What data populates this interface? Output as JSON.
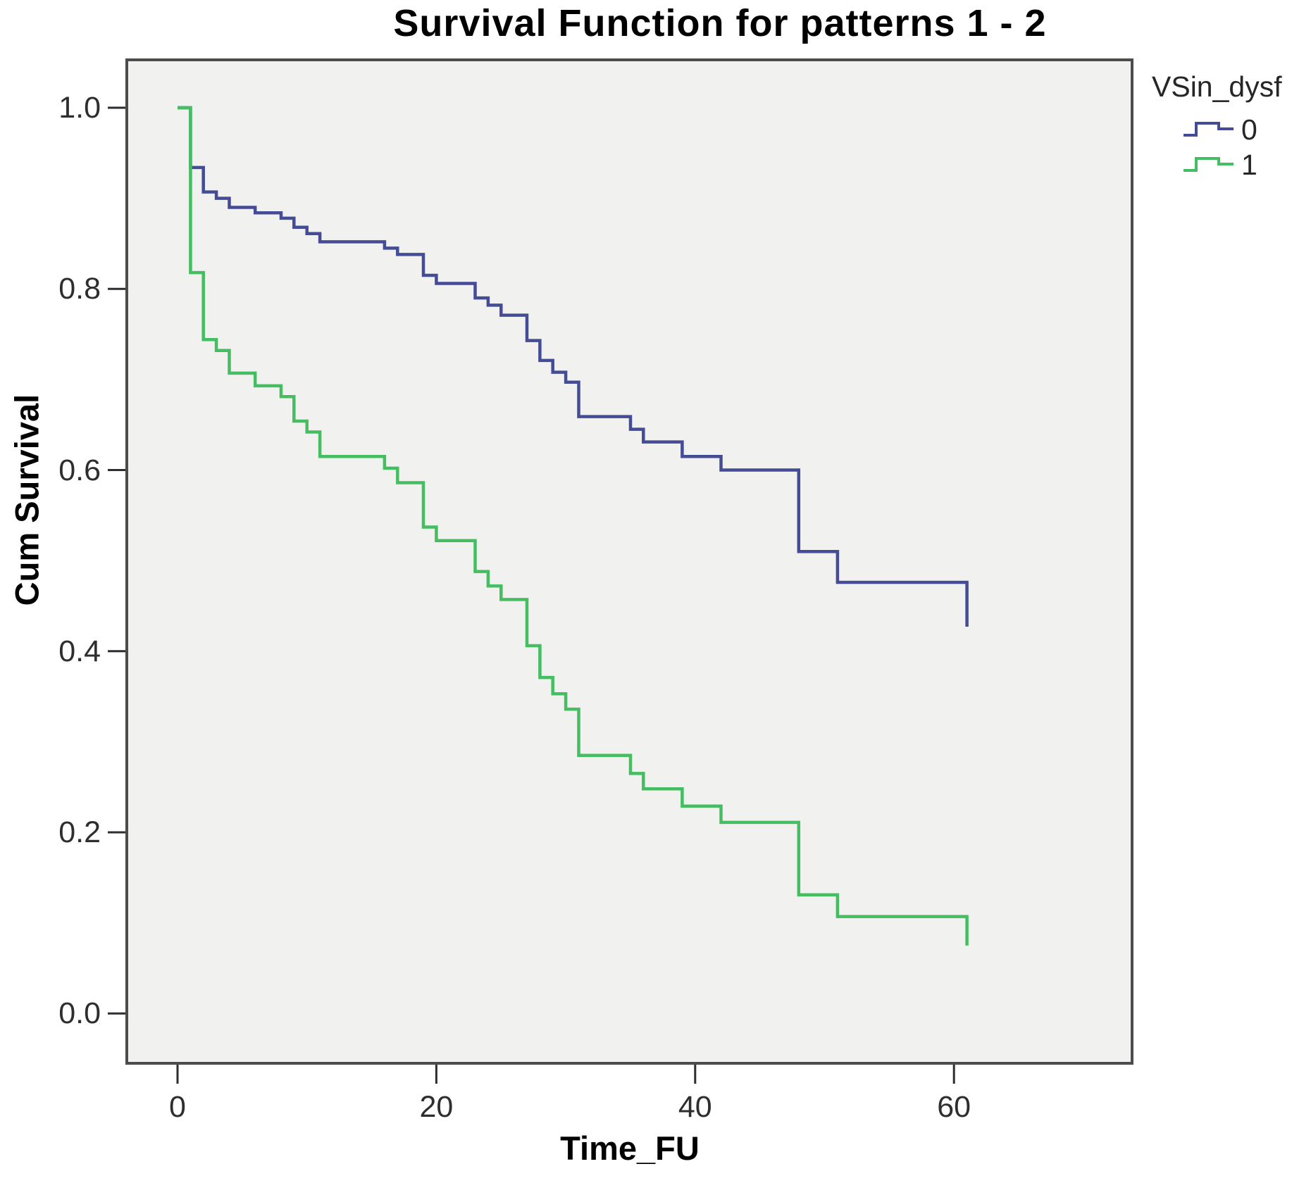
{
  "chart_data": {
    "type": "line",
    "subtype": "step-survival",
    "title": "Survival Function for patterns 1 - 2",
    "xlabel": "Time_FU",
    "ylabel": "Cum Survival",
    "legend_title": "VSin_dysf",
    "legend_position": "top-right-outside",
    "grid": false,
    "plot_background": "#f1f1ef",
    "plot_border_color": "#4c4c4c",
    "tick_color": "#2e2e2e",
    "xlim": [
      -3.9,
      73.8
    ],
    "ylim": [
      -0.055,
      1.055
    ],
    "x_ticks": {
      "values": [
        0,
        20,
        40,
        60
      ],
      "labels": [
        "0",
        "20",
        "40",
        "60"
      ]
    },
    "y_ticks": {
      "values": [
        0.0,
        0.2,
        0.4,
        0.6,
        0.8,
        1.0
      ],
      "labels": [
        "0.0",
        "0.2",
        "0.4",
        "0.6",
        "0.8",
        "1.0"
      ]
    },
    "series": [
      {
        "name": "0",
        "color": "#444c95",
        "points": [
          [
            0,
            1.0
          ],
          [
            1,
            0.934
          ],
          [
            2,
            0.907
          ],
          [
            3,
            0.9
          ],
          [
            4,
            0.89
          ],
          [
            6,
            0.884
          ],
          [
            8,
            0.878
          ],
          [
            9,
            0.868
          ],
          [
            10,
            0.861
          ],
          [
            11,
            0.852
          ],
          [
            16,
            0.845
          ],
          [
            17,
            0.838
          ],
          [
            19,
            0.815
          ],
          [
            20,
            0.806
          ],
          [
            23,
            0.79
          ],
          [
            24,
            0.782
          ],
          [
            25,
            0.771
          ],
          [
            27,
            0.743
          ],
          [
            28,
            0.721
          ],
          [
            29,
            0.708
          ],
          [
            30,
            0.697
          ],
          [
            31,
            0.659
          ],
          [
            35,
            0.645
          ],
          [
            36,
            0.631
          ],
          [
            39,
            0.615
          ],
          [
            42,
            0.6
          ],
          [
            48,
            0.51
          ],
          [
            51,
            0.476
          ],
          [
            61,
            0.427
          ]
        ]
      },
      {
        "name": "1",
        "color": "#45be61",
        "points": [
          [
            0,
            1.0
          ],
          [
            1,
            0.818
          ],
          [
            2,
            0.744
          ],
          [
            3,
            0.732
          ],
          [
            4,
            0.707
          ],
          [
            6,
            0.693
          ],
          [
            8,
            0.681
          ],
          [
            9,
            0.654
          ],
          [
            10,
            0.642
          ],
          [
            11,
            0.615
          ],
          [
            16,
            0.602
          ],
          [
            17,
            0.586
          ],
          [
            19,
            0.537
          ],
          [
            20,
            0.522
          ],
          [
            23,
            0.488
          ],
          [
            24,
            0.472
          ],
          [
            25,
            0.457
          ],
          [
            27,
            0.406
          ],
          [
            28,
            0.371
          ],
          [
            29,
            0.353
          ],
          [
            30,
            0.336
          ],
          [
            31,
            0.285
          ],
          [
            35,
            0.265
          ],
          [
            36,
            0.248
          ],
          [
            39,
            0.229
          ],
          [
            42,
            0.211
          ],
          [
            48,
            0.131
          ],
          [
            51,
            0.107
          ],
          [
            61,
            0.075
          ]
        ]
      }
    ]
  }
}
